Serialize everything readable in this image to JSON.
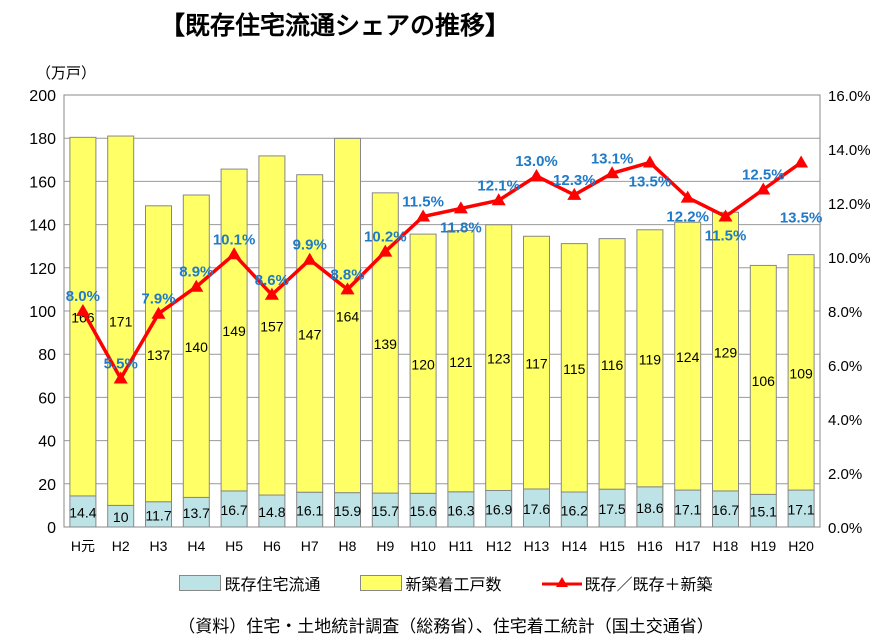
{
  "chart_data": {
    "type": "bar",
    "title": "【既存住宅流通シェアの推移】",
    "unit_label": "（万戸）",
    "categories": [
      "H元",
      "H2",
      "H3",
      "H4",
      "H5",
      "H6",
      "H7",
      "H8",
      "H9",
      "H10",
      "H11",
      "H12",
      "H13",
      "H14",
      "H15",
      "H16",
      "H17",
      "H18",
      "H19",
      "H20"
    ],
    "series": [
      {
        "name": "既存住宅流通",
        "kind": "stacked-bar",
        "axis": "left",
        "color": "#bde3e6",
        "values": [
          14.4,
          10,
          11.7,
          13.7,
          16.7,
          14.8,
          16.1,
          15.9,
          15.7,
          15.6,
          16.3,
          16.9,
          17.6,
          16.2,
          17.5,
          18.6,
          17.1,
          16.7,
          15.1,
          17.1
        ]
      },
      {
        "name": "新築着工戸数",
        "kind": "stacked-bar",
        "axis": "left",
        "color": "#ffff66",
        "values": [
          166,
          171,
          137,
          140,
          149,
          157,
          147,
          164,
          139,
          120,
          121,
          123,
          117,
          115,
          116,
          119,
          124,
          129,
          106,
          109
        ]
      },
      {
        "name": "既存／既存＋新築",
        "kind": "line",
        "axis": "right",
        "color": "#ff0000",
        "label_color": "#1f7ac8",
        "values": [
          8.0,
          5.5,
          7.9,
          8.9,
          10.1,
          8.6,
          9.9,
          8.8,
          10.2,
          11.5,
          11.8,
          12.1,
          13.0,
          12.3,
          13.1,
          13.5,
          12.2,
          11.5,
          12.5,
          13.5
        ]
      }
    ],
    "y_left": {
      "min": 0,
      "max": 200,
      "ticks": [
        "0",
        "20",
        "40",
        "60",
        "80",
        "100",
        "120",
        "140",
        "160",
        "180",
        "200"
      ]
    },
    "y_right": {
      "min": 0,
      "max": 16,
      "ticks": [
        "0.0%",
        "2.0%",
        "4.0%",
        "6.0%",
        "8.0%",
        "10.0%",
        "12.0%",
        "14.0%",
        "16.0%"
      ]
    },
    "grid": true,
    "legend": "bottom",
    "source": "（資料）住宅・土地統計調査（総務省）、住宅着工統計（国土交通省）"
  }
}
